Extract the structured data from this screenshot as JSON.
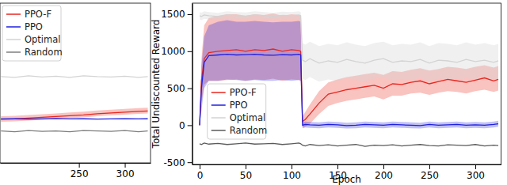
{
  "chart_data": [
    {
      "type": "line",
      "x": [
        165,
        180,
        195,
        210,
        225,
        240,
        255,
        270,
        285,
        300,
        315,
        325
      ],
      "xlim": [
        164,
        328
      ],
      "xticks": [
        250,
        300
      ],
      "ylim": [
        -500,
        1500
      ],
      "tick_labels": "x",
      "legend": "upper left",
      "series": [
        {
          "name": "PPO-F",
          "color": "#e8261e",
          "values": [
            45,
            50,
            60,
            70,
            80,
            90,
            100,
            115,
            125,
            135,
            145,
            150
          ],
          "lower": [
            15,
            20,
            30,
            40,
            50,
            60,
            70,
            85,
            95,
            105,
            115,
            120
          ],
          "upper": [
            85,
            90,
            100,
            110,
            120,
            130,
            140,
            155,
            165,
            175,
            185,
            190
          ]
        },
        {
          "name": "PPO",
          "color": "#1f1fe0",
          "values": [
            50,
            52,
            48,
            50,
            55,
            50,
            52,
            48,
            50,
            53,
            50,
            52
          ]
        },
        {
          "name": "Optimal",
          "color": "#d3d3d3",
          "values": [
            580,
            570,
            590,
            575,
            585,
            570,
            590,
            580,
            575,
            585,
            570,
            580
          ]
        },
        {
          "name": "Random",
          "color": "#7f7f7f",
          "values": [
            -100,
            -110,
            -95,
            -105,
            -100,
            -110,
            -95,
            -100,
            -105,
            -95,
            -110,
            -100
          ]
        }
      ]
    },
    {
      "type": "line",
      "x_label": "Epoch",
      "y_label": "Total Undiscounted Reward",
      "x": [
        0,
        2,
        5,
        10,
        20,
        30,
        40,
        50,
        60,
        70,
        80,
        90,
        100,
        108,
        110,
        112,
        115,
        120,
        130,
        140,
        150,
        160,
        170,
        180,
        190,
        200,
        210,
        220,
        230,
        240,
        250,
        260,
        270,
        280,
        290,
        300,
        310,
        320,
        325
      ],
      "xlim": [
        -8,
        328
      ],
      "xticks": [
        0,
        50,
        100,
        150,
        200,
        250,
        300
      ],
      "ylim": [
        -530,
        1650
      ],
      "yticks": [
        -500,
        0,
        500,
        1000,
        1500
      ],
      "legend": "lower left",
      "series": [
        {
          "name": "PPO-F",
          "color": "#e8261e",
          "values": [
            0,
            600,
            900,
            980,
            1000,
            1010,
            1020,
            1000,
            1020,
            1010,
            1030,
            1000,
            1020,
            1010,
            1000,
            50,
            80,
            150,
            300,
            420,
            450,
            480,
            500,
            520,
            540,
            500,
            560,
            550,
            580,
            600,
            560,
            590,
            620,
            600,
            580,
            610,
            640,
            600,
            620
          ],
          "lower": [
            0,
            300,
            550,
            600,
            600,
            610,
            620,
            600,
            620,
            610,
            630,
            600,
            620,
            610,
            600,
            -30,
            -20,
            20,
            150,
            260,
            300,
            330,
            350,
            370,
            390,
            350,
            400,
            400,
            430,
            440,
            410,
            440,
            460,
            450,
            430,
            460,
            480,
            450,
            470
          ],
          "upper": [
            0,
            900,
            1350,
            1450,
            1480,
            1500,
            1500,
            1480,
            1500,
            1490,
            1510,
            1480,
            1500,
            1490,
            1480,
            120,
            180,
            280,
            460,
            580,
            620,
            650,
            670,
            690,
            710,
            680,
            730,
            720,
            750,
            770,
            740,
            760,
            790,
            780,
            760,
            790,
            810,
            780,
            800
          ]
        },
        {
          "name": "PPO",
          "color": "#1f1fe0",
          "values": [
            0,
            500,
            850,
            940,
            950,
            960,
            950,
            955,
            960,
            950,
            945,
            955,
            950,
            960,
            950,
            0,
            10,
            5,
            0,
            10,
            5,
            -5,
            0,
            10,
            5,
            0,
            10,
            5,
            0,
            -5,
            10,
            0,
            5,
            10,
            0,
            5,
            0,
            10,
            20
          ],
          "lower": [
            0,
            200,
            500,
            600,
            600,
            620,
            610,
            600,
            610,
            600,
            600,
            610,
            600,
            610,
            600,
            -40,
            -30,
            -35,
            -40,
            -30,
            -35,
            -45,
            -40,
            -30,
            -35,
            -40,
            -30,
            -35,
            -40,
            -45,
            -30,
            -40,
            -35,
            -30,
            -40,
            -35,
            -40,
            -30,
            -20
          ],
          "upper": [
            0,
            800,
            1200,
            1350,
            1400,
            1420,
            1400,
            1400,
            1410,
            1400,
            1390,
            1400,
            1400,
            1410,
            1400,
            40,
            50,
            45,
            40,
            50,
            45,
            35,
            40,
            50,
            45,
            40,
            50,
            45,
            40,
            35,
            50,
            40,
            45,
            50,
            40,
            45,
            40,
            50,
            60
          ]
        },
        {
          "name": "Optimal",
          "color": "#d3d3d3",
          "values": [
            1480,
            1470,
            1490,
            1480,
            1470,
            1490,
            1480,
            1475,
            1490,
            1480,
            1470,
            1485,
            1480,
            1490,
            1480,
            880,
            860,
            900,
            840,
            870,
            850,
            890,
            860,
            840,
            880,
            900,
            850,
            870,
            860,
            890,
            840,
            880,
            870,
            850,
            890,
            860,
            880,
            850,
            870
          ],
          "lower": [
            1430,
            1420,
            1440,
            1430,
            1420,
            1440,
            1430,
            1425,
            1440,
            1430,
            1420,
            1435,
            1430,
            1440,
            1430,
            630,
            610,
            650,
            590,
            620,
            600,
            640,
            610,
            590,
            630,
            650,
            600,
            620,
            610,
            640,
            590,
            630,
            620,
            600,
            640,
            610,
            630,
            600,
            620
          ],
          "upper": [
            1530,
            1520,
            1540,
            1530,
            1520,
            1540,
            1530,
            1525,
            1540,
            1530,
            1520,
            1535,
            1530,
            1540,
            1530,
            1110,
            1090,
            1130,
            1070,
            1100,
            1080,
            1120,
            1090,
            1070,
            1110,
            1130,
            1080,
            1100,
            1090,
            1120,
            1070,
            1110,
            1100,
            1080,
            1120,
            1090,
            1110,
            1080,
            1100
          ]
        },
        {
          "name": "Random",
          "color": "#5a5a5a",
          "values": [
            -250,
            -260,
            -240,
            -255,
            -245,
            -260,
            -250,
            -240,
            -255,
            -250,
            -245,
            -260,
            -250,
            -240,
            -250,
            -270,
            -280,
            -260,
            -275,
            -265,
            -280,
            -270,
            -260,
            -285,
            -270,
            -275,
            -265,
            -280,
            -270,
            -260,
            -275,
            -280,
            -265,
            -270,
            -275,
            -260,
            -280,
            -270,
            -275
          ]
        }
      ]
    }
  ]
}
